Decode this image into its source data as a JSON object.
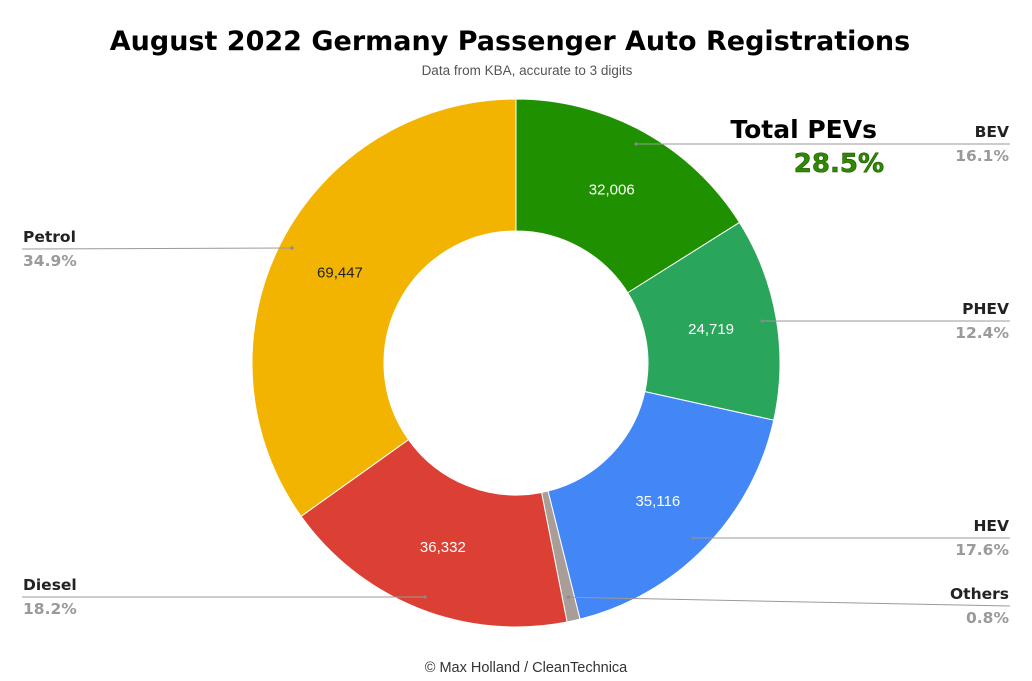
{
  "chart_data": {
    "type": "pie",
    "style": "donut",
    "title": "August 2022 Germany Passenger Auto Registrations",
    "subtitle": "Data from KBA, accurate to 3 digits",
    "credit": "© Max Holland / CleanTechnica",
    "slices": [
      {
        "name": "BEV",
        "value": 32006,
        "value_label": "32,006",
        "percent_label": "16.1%",
        "color": "#1f9100",
        "text_color": "#ffffff"
      },
      {
        "name": "PHEV",
        "value": 24719,
        "value_label": "24,719",
        "percent_label": "12.4%",
        "color": "#2aa55c",
        "text_color": "#ffffff"
      },
      {
        "name": "HEV",
        "value": 35116,
        "value_label": "35,116",
        "percent_label": "17.6%",
        "color": "#4287f5",
        "text_color": "#ffffff"
      },
      {
        "name": "Others",
        "value": 1590,
        "value_label": "",
        "percent_label": "0.8%",
        "color": "#a89d97",
        "text_color": "#ffffff"
      },
      {
        "name": "Diesel",
        "value": 36332,
        "value_label": "36,332",
        "percent_label": "18.2%",
        "color": "#dc4034",
        "text_color": "#ffffff"
      },
      {
        "name": "Petrol",
        "value": 69447,
        "value_label": "69,447",
        "percent_label": "34.9%",
        "color": "#f2b400",
        "text_color": "#222222"
      }
    ],
    "legend_placement": "sides",
    "callout": {
      "label": "Total PEVs",
      "value": "28.5%"
    }
  }
}
